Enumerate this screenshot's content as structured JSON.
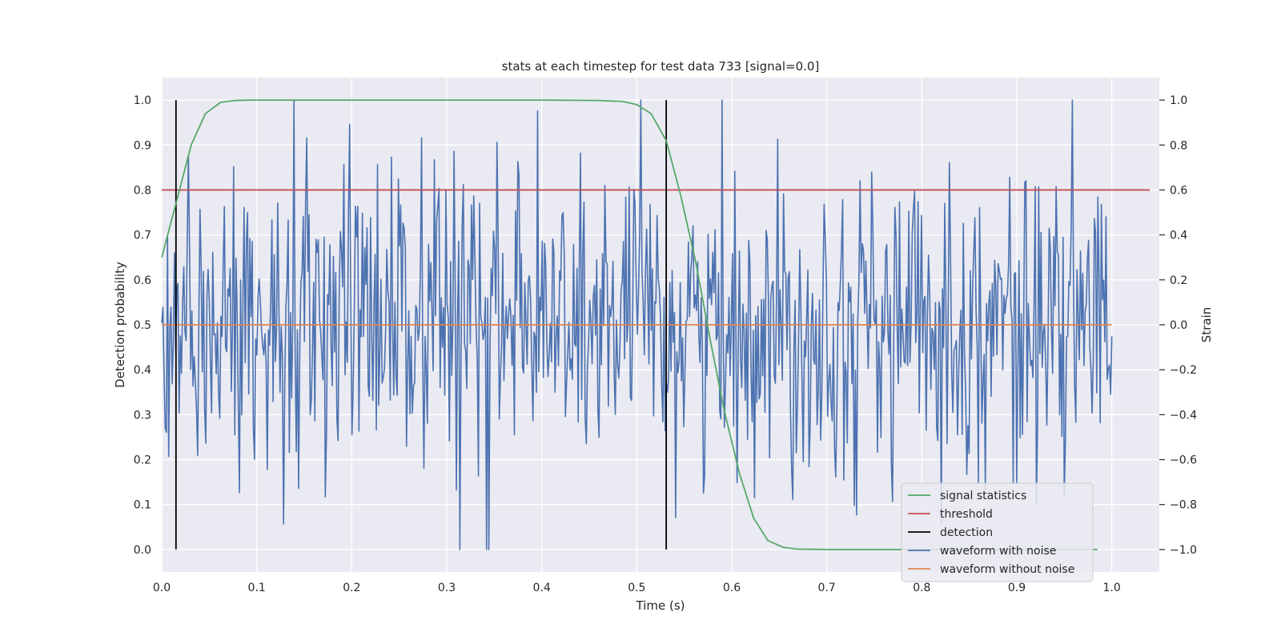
{
  "chart_data": {
    "type": "line",
    "title": "stats at each timestep for test data 733 [signal=0.0]",
    "xlabel": "Time (s)",
    "ylabel_left": "Detection probability",
    "ylabel_right": "Strain",
    "xlim": [
      0.0,
      1.05
    ],
    "ylim_left": [
      -0.05,
      1.05
    ],
    "ylim_right": [
      -1.1,
      1.1
    ],
    "xticks": [
      0.0,
      0.1,
      0.2,
      0.3,
      0.4,
      0.5,
      0.6,
      0.7,
      0.8,
      0.9,
      1.0
    ],
    "xtick_labels": [
      "0.0",
      "0.1",
      "0.2",
      "0.3",
      "0.4",
      "0.5",
      "0.6",
      "0.7",
      "0.8",
      "0.9",
      "1.0"
    ],
    "yticks_left": [
      0.0,
      0.1,
      0.2,
      0.3,
      0.4,
      0.5,
      0.6,
      0.7,
      0.8,
      0.9,
      1.0
    ],
    "ytick_labels_left": [
      "0.0",
      "0.1",
      "0.2",
      "0.3",
      "0.4",
      "0.5",
      "0.6",
      "0.7",
      "0.8",
      "0.9",
      "1.0"
    ],
    "yticks_right": [
      -1.0,
      -0.8,
      -0.6,
      -0.4,
      -0.2,
      0.0,
      0.2,
      0.4,
      0.6,
      0.8,
      1.0
    ],
    "ytick_labels_right": [
      "−1.0",
      "−0.8",
      "−0.6",
      "−0.4",
      "−0.2",
      "0.0",
      "0.2",
      "0.4",
      "0.6",
      "0.8",
      "1.0"
    ],
    "grid": true,
    "legend_position": "lower right",
    "colors": {
      "background": "#eaeaf2",
      "grid": "#ffffff",
      "signal_statistics": "#55a868",
      "threshold": "#c44e52",
      "detection": "#000000",
      "waveform_with_noise": "#4c72b0",
      "waveform_without_noise": "#dd8452"
    },
    "series": [
      {
        "name": "signal statistics",
        "axis": "left",
        "x": [
          0.0,
          0.015,
          0.031,
          0.046,
          0.062,
          0.077,
          0.092,
          0.108,
          0.2,
          0.3,
          0.4,
          0.46,
          0.485,
          0.5,
          0.515,
          0.531,
          0.546,
          0.562,
          0.577,
          0.592,
          0.608,
          0.623,
          0.638,
          0.654,
          0.669,
          0.7,
          0.8,
          0.9,
          0.985
        ],
        "y": [
          0.65,
          0.77,
          0.9,
          0.97,
          0.995,
          0.999,
          1.0,
          1.0,
          1.0,
          1.0,
          1.0,
          0.999,
          0.997,
          0.99,
          0.97,
          0.91,
          0.79,
          0.64,
          0.47,
          0.31,
          0.17,
          0.07,
          0.02,
          0.005,
          0.001,
          0.0,
          0.0,
          0.0,
          0.0
        ]
      },
      {
        "name": "threshold",
        "axis": "left",
        "x": [
          0.0,
          1.04
        ],
        "y": [
          0.8,
          0.8
        ]
      },
      {
        "name": "detection",
        "axis": "left",
        "x": [
          0.015,
          0.531
        ],
        "y_range": [
          0.0,
          1.0
        ]
      },
      {
        "name": "waveform with noise",
        "axis": "right",
        "x_range": [
          0.0,
          1.0
        ],
        "n_points": 820,
        "y_range": [
          -1.0,
          1.0
        ],
        "note": "noise"
      },
      {
        "name": "waveform without noise",
        "axis": "right",
        "x": [
          0.0,
          1.0
        ],
        "y": [
          0.0,
          0.0
        ]
      }
    ],
    "legend": [
      "signal statistics",
      "threshold",
      "detection",
      "waveform with noise",
      "waveform without noise"
    ]
  }
}
